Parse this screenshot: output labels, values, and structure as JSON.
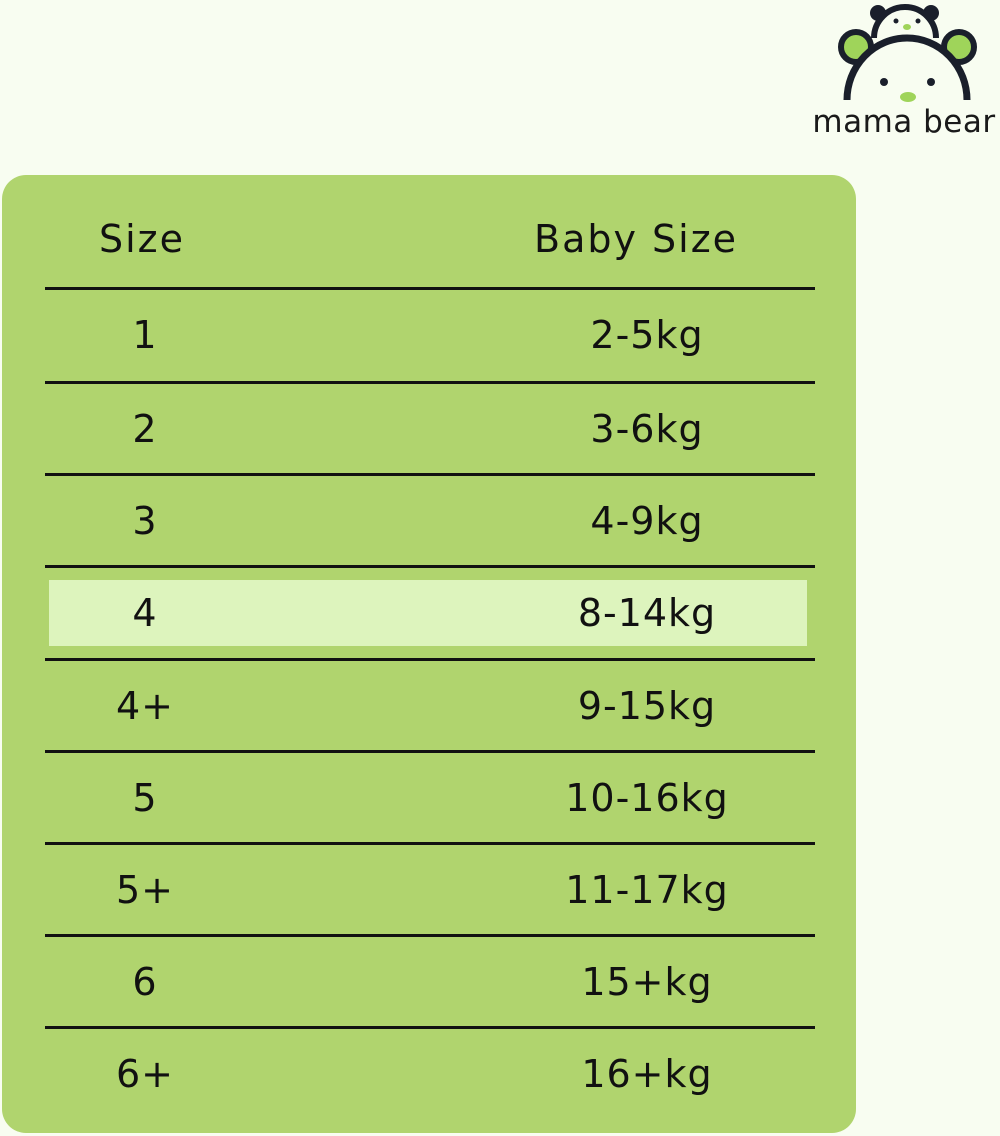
{
  "brand": {
    "name": "mama bear",
    "colors": {
      "accent": "#9fd45a",
      "dark": "#1a1f2b"
    }
  },
  "table": {
    "headers": [
      "Size",
      "Baby Size"
    ],
    "highlighted_row": "4",
    "rows": [
      {
        "size": "1",
        "weight": "2-5kg"
      },
      {
        "size": "2",
        "weight": "3-6kg"
      },
      {
        "size": "3",
        "weight": "4-9kg"
      },
      {
        "size": "4",
        "weight": "8-14kg"
      },
      {
        "size": "4+",
        "weight": "9-15kg"
      },
      {
        "size": "5",
        "weight": "10-16kg"
      },
      {
        "size": "5+",
        "weight": "11-17kg"
      },
      {
        "size": "6",
        "weight": "15+kg"
      },
      {
        "size": "6+",
        "weight": "16+kg"
      }
    ],
    "colors": {
      "panel": "#b0d46e",
      "highlight": "#ddf4bd",
      "background": "#f8fdf1"
    }
  }
}
